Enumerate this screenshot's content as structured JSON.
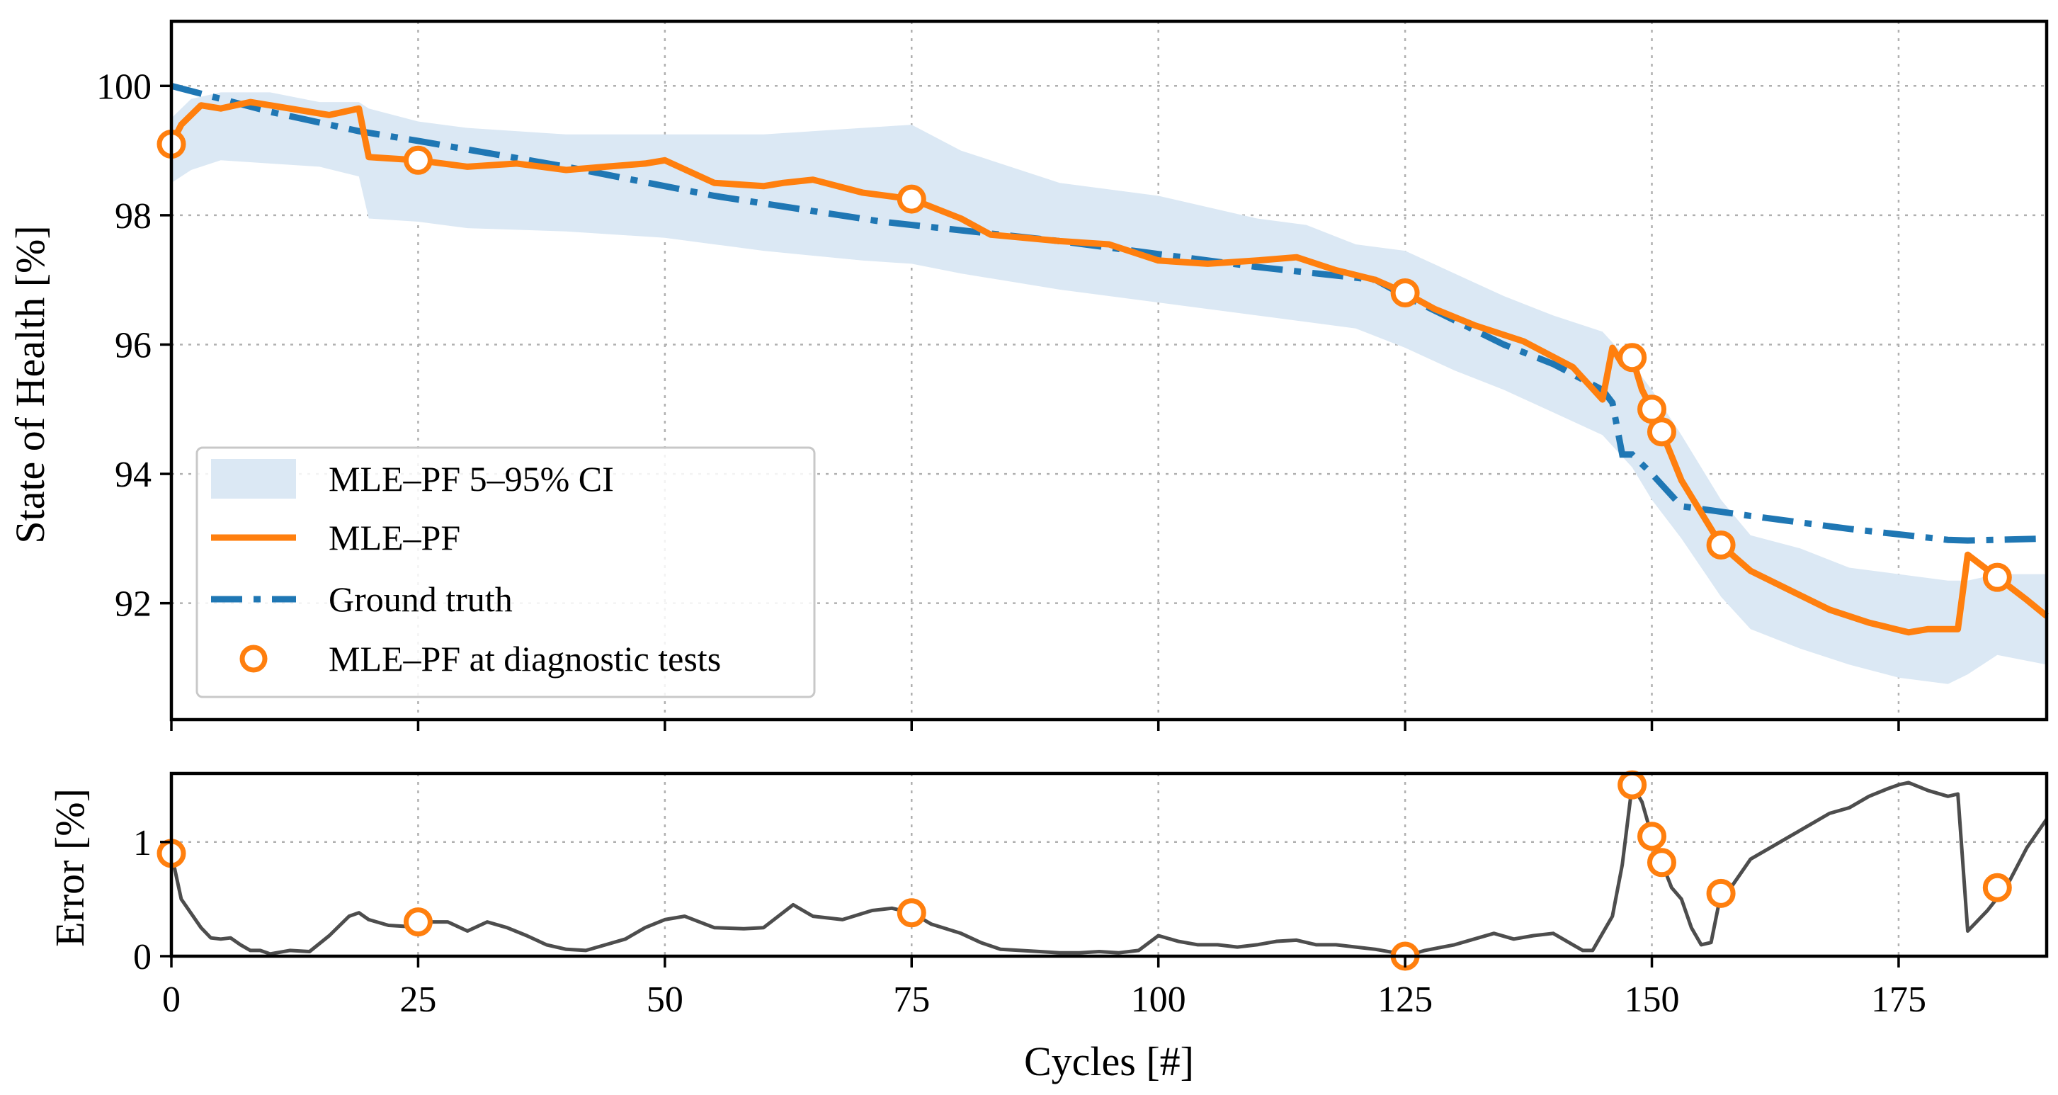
{
  "chart_data": [
    {
      "type": "line",
      "ylabel": "State of Health [%]",
      "xlim": [
        0,
        190
      ],
      "ylim": [
        90.2,
        101.0
      ],
      "xticks": [
        0,
        25,
        50,
        75,
        100,
        125,
        150,
        175
      ],
      "yticks": [
        92,
        94,
        96,
        98,
        100
      ],
      "ytick_labels": [
        "92",
        "94",
        "96",
        "98",
        "100"
      ],
      "grid": true,
      "legend_position": "lower-left",
      "legend": [
        {
          "key": "ci",
          "label": "MLE–PF 5–95% CI"
        },
        {
          "key": "pf",
          "label": "MLE–PF"
        },
        {
          "key": "gt",
          "label": "Ground truth"
        },
        {
          "key": "diag",
          "label": "MLE–PF at diagnostic tests"
        }
      ],
      "colors": {
        "ci": "#dbe8f4",
        "pf": "#ff7f0e",
        "gt": "#1f77b4",
        "diag": "#ff7f0e"
      },
      "series": [
        {
          "name": "Ground truth",
          "x": [
            0,
            10,
            19,
            25,
            40,
            55,
            72,
            90,
            100,
            110,
            122,
            125,
            135,
            140,
            145,
            146,
            147,
            148,
            150,
            153,
            160,
            170,
            180,
            182,
            190
          ],
          "y": [
            100.0,
            99.6,
            99.3,
            99.15,
            98.75,
            98.3,
            97.9,
            97.6,
            97.4,
            97.2,
            97.0,
            96.75,
            96.0,
            95.7,
            95.3,
            95.1,
            94.3,
            94.3,
            94.0,
            93.5,
            93.35,
            93.15,
            92.98,
            92.97,
            93.0
          ]
        },
        {
          "name": "MLE–PF",
          "x": [
            0,
            1,
            3,
            5,
            8,
            12,
            16,
            19,
            20,
            25,
            30,
            35,
            40,
            44,
            48,
            50,
            55,
            60,
            62,
            65,
            70,
            75,
            80,
            83,
            90,
            95,
            100,
            105,
            110,
            114,
            118,
            122,
            125,
            128,
            132,
            137,
            142,
            145,
            146,
            147,
            148,
            149,
            150,
            151,
            153,
            157,
            160,
            164,
            168,
            172,
            176,
            178,
            180,
            181,
            182,
            185,
            188,
            190
          ],
          "y": [
            99.1,
            99.4,
            99.7,
            99.65,
            99.75,
            99.65,
            99.55,
            99.65,
            98.9,
            98.85,
            98.75,
            98.8,
            98.7,
            98.75,
            98.8,
            98.85,
            98.5,
            98.45,
            98.5,
            98.55,
            98.35,
            98.25,
            97.95,
            97.7,
            97.6,
            97.55,
            97.3,
            97.25,
            97.3,
            97.35,
            97.15,
            97.0,
            96.8,
            96.55,
            96.3,
            96.05,
            95.65,
            95.15,
            95.95,
            95.7,
            95.8,
            95.3,
            95.0,
            94.65,
            93.9,
            92.9,
            92.5,
            92.2,
            91.9,
            91.7,
            91.55,
            91.6,
            91.6,
            91.6,
            92.75,
            92.4,
            92.05,
            91.8
          ]
        }
      ],
      "ci_band": {
        "x": [
          0,
          2,
          5,
          10,
          15,
          19,
          20,
          25,
          30,
          40,
          50,
          60,
          70,
          75,
          80,
          90,
          100,
          110,
          115,
          120,
          125,
          130,
          135,
          140,
          145,
          148,
          150,
          153,
          157,
          160,
          165,
          170,
          175,
          180,
          182,
          185,
          190
        ],
        "lower": [
          98.5,
          98.7,
          98.85,
          98.8,
          98.75,
          98.6,
          97.95,
          97.9,
          97.8,
          97.75,
          97.65,
          97.45,
          97.3,
          97.25,
          97.1,
          96.85,
          96.65,
          96.45,
          96.35,
          96.25,
          95.95,
          95.6,
          95.3,
          94.95,
          94.6,
          94.1,
          93.6,
          93.0,
          92.1,
          91.6,
          91.3,
          91.05,
          90.85,
          90.75,
          90.9,
          91.2,
          91.05
        ],
        "upper": [
          99.5,
          99.8,
          99.9,
          99.9,
          99.75,
          99.75,
          99.65,
          99.45,
          99.35,
          99.25,
          99.25,
          99.25,
          99.35,
          99.4,
          99.0,
          98.5,
          98.3,
          97.95,
          97.85,
          97.55,
          97.45,
          97.1,
          96.75,
          96.45,
          96.2,
          95.7,
          95.3,
          94.6,
          93.6,
          93.05,
          92.85,
          92.55,
          92.45,
          92.35,
          92.35,
          92.45,
          92.45
        ]
      },
      "diagnostic_tests": {
        "x": [
          0,
          25,
          75,
          125,
          148,
          150,
          151,
          157,
          185
        ],
        "y": [
          99.1,
          98.85,
          98.25,
          96.8,
          95.8,
          95.0,
          94.65,
          92.9,
          92.4
        ]
      }
    },
    {
      "type": "line",
      "xlabel": "Cycles [#]",
      "ylabel": "Error [%]",
      "xlim": [
        0,
        190
      ],
      "ylim": [
        0,
        1.6
      ],
      "xticks": [
        0,
        25,
        50,
        75,
        100,
        125,
        150,
        175
      ],
      "xtick_labels": [
        "0",
        "25",
        "50",
        "75",
        "100",
        "125",
        "150",
        "175"
      ],
      "yticks": [
        0,
        1
      ],
      "ytick_labels": [
        "0",
        "1"
      ],
      "grid": true,
      "colors": {
        "error": "#4d4d4d",
        "diag": "#ff7f0e"
      },
      "series": [
        {
          "name": "Error",
          "x": [
            0,
            1,
            3,
            4,
            5,
            6,
            7,
            8,
            9,
            10,
            12,
            14,
            16,
            18,
            19,
            20,
            22,
            24,
            25,
            27,
            28,
            30,
            32,
            34,
            36,
            38,
            40,
            42,
            44,
            46,
            48,
            50,
            52,
            55,
            58,
            60,
            63,
            65,
            68,
            71,
            73,
            75,
            77,
            80,
            82,
            84,
            86,
            88,
            90,
            92,
            94,
            96,
            98,
            100,
            102,
            104,
            106,
            108,
            110,
            112,
            114,
            116,
            118,
            120,
            122,
            124,
            125,
            127,
            130,
            132,
            134,
            136,
            138,
            140,
            142,
            143,
            144,
            145,
            146,
            147,
            148,
            149,
            150,
            151,
            152,
            153,
            154,
            155,
            156,
            157,
            158,
            160,
            162,
            164,
            166,
            168,
            170,
            172,
            174,
            175,
            176,
            178,
            180,
            181,
            182,
            184,
            186,
            188,
            190
          ],
          "y": [
            0.9,
            0.5,
            0.25,
            0.16,
            0.15,
            0.16,
            0.1,
            0.05,
            0.05,
            0.02,
            0.05,
            0.04,
            0.18,
            0.35,
            0.38,
            0.32,
            0.27,
            0.26,
            0.3,
            0.3,
            0.3,
            0.22,
            0.3,
            0.25,
            0.18,
            0.1,
            0.06,
            0.05,
            0.1,
            0.15,
            0.25,
            0.32,
            0.35,
            0.25,
            0.24,
            0.25,
            0.45,
            0.35,
            0.32,
            0.4,
            0.42,
            0.38,
            0.28,
            0.2,
            0.12,
            0.06,
            0.05,
            0.04,
            0.03,
            0.03,
            0.04,
            0.03,
            0.05,
            0.18,
            0.13,
            0.1,
            0.1,
            0.08,
            0.1,
            0.13,
            0.14,
            0.1,
            0.1,
            0.08,
            0.06,
            0.03,
            0.0,
            0.05,
            0.1,
            0.15,
            0.2,
            0.15,
            0.18,
            0.2,
            0.1,
            0.05,
            0.05,
            0.2,
            0.35,
            0.8,
            1.5,
            1.35,
            1.05,
            0.82,
            0.6,
            0.5,
            0.25,
            0.1,
            0.12,
            0.55,
            0.6,
            0.85,
            0.95,
            1.05,
            1.15,
            1.25,
            1.3,
            1.4,
            1.47,
            1.5,
            1.52,
            1.45,
            1.4,
            1.42,
            0.22,
            0.4,
            0.62,
            0.95,
            1.2
          ]
        }
      ],
      "diagnostic_tests": {
        "x": [
          0,
          25,
          75,
          125,
          148,
          150,
          151,
          157,
          185
        ],
        "y": [
          0.9,
          0.3,
          0.38,
          0.0,
          1.5,
          1.05,
          0.82,
          0.55,
          0.6
        ]
      }
    }
  ]
}
